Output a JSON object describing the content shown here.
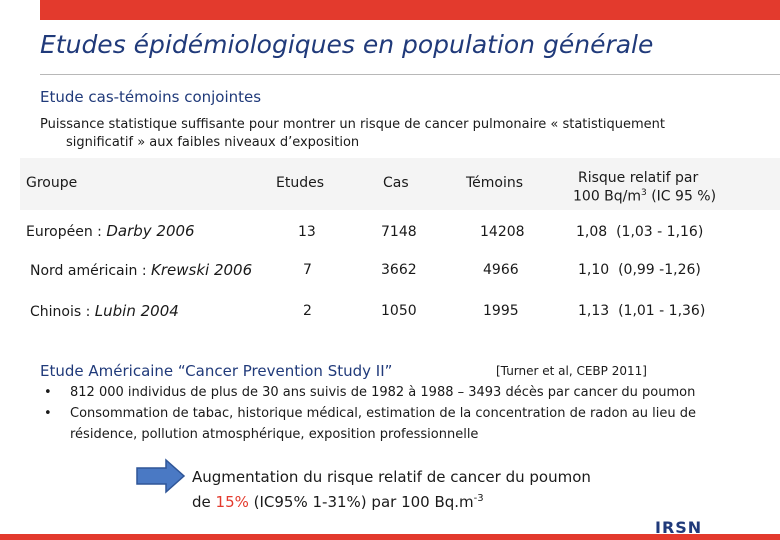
{
  "title": "Etudes épidémiologiques en population générale",
  "subtitle": "Etude cas-témoins conjointes",
  "intro": {
    "line1": "Puissance statistique suffisante pour montrer un risque de cancer pulmonaire « statistiquement",
    "line2": "significatif » aux faibles niveaux d’exposition"
  },
  "table": {
    "headers": {
      "groupe": "Groupe",
      "etudes": "Etudes",
      "cas": "Cas",
      "temoins": "Témoins",
      "risque_line1": "Risque relatif par",
      "risque_line2_pre": "100 Bq/m",
      "risque_sup": "3",
      "risque_line2_post": " (IC 95 %)"
    },
    "rows": [
      {
        "group": "Européen",
        "sep": " : ",
        "author": "Darby 2006",
        "etudes": "13",
        "cas": "7148",
        "temoins": "14208",
        "rr": "1,08",
        "ic": "(1,03 - 1,16)"
      },
      {
        "group": "Nord américain",
        "sep": " : ",
        "author": "Krewski 2006",
        "etudes": "7",
        "cas": "3662",
        "temoins": "4966",
        "rr": "1,10",
        "ic": "(0,99 -1,26)"
      },
      {
        "group": "Chinois",
        "sep": " : ",
        "author": "Lubin 2004",
        "etudes": "2",
        "cas": "1050",
        "temoins": "1995",
        "rr": "1,13",
        "ic": "(1,01 - 1,36)"
      }
    ]
  },
  "american": {
    "title": "Etude Américaine “Cancer Prevention Study II”",
    "reference": "[Turner et al, CEBP 2011]",
    "bullet_char": "•",
    "bullets": [
      "812 000 individus de plus de 30 ans suivis de 1982 à 1988 – 3493 décès par cancer du poumon",
      "Consommation de tabac, historique médical, estimation de la concentration de radon au lieu de résidence, pollution atmosphérique, exposition professionnelle"
    ]
  },
  "conclusion": {
    "line1": "Augmentation du risque relatif de cancer du poumon",
    "de": "de ",
    "pct": "15%",
    "ic": " (IC95% 1-31%)",
    "per": " par 100 Bq.m",
    "sup": "-3"
  },
  "logo": "IRSN",
  "colors": {
    "accent_red": "#e33a2d",
    "title_blue": "#203a7a",
    "arrow_blue": "#4a79c4"
  }
}
